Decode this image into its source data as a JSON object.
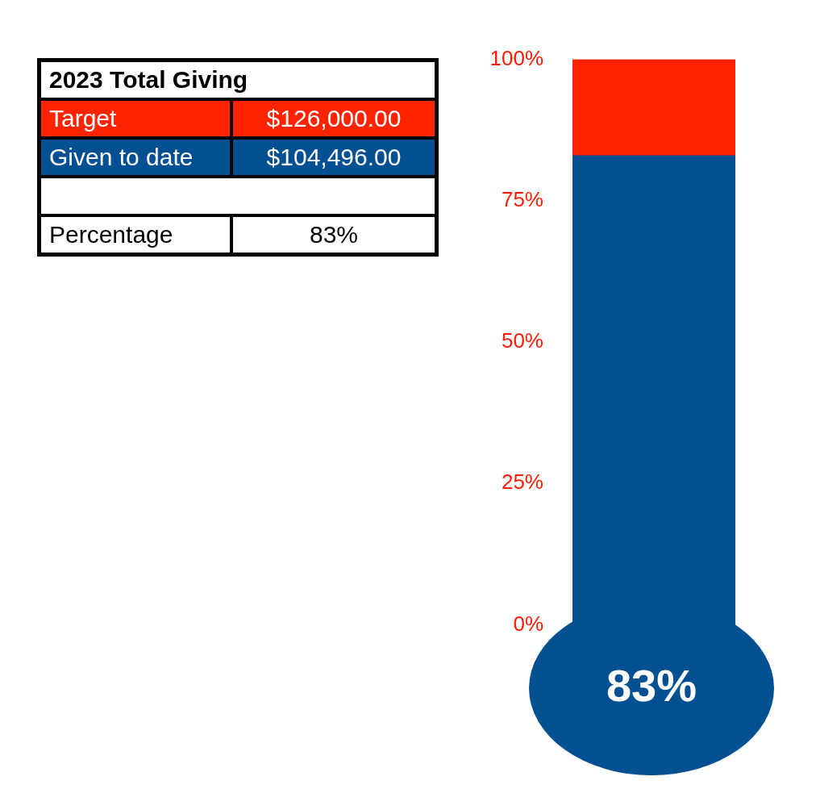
{
  "chart_data": [
    {
      "type": "other",
      "title": "2023 Total Giving",
      "colors": [
        "#ff2300",
        "#024f91"
      ],
      "annotations": [
        "Target",
        "$126,000.00",
        "Given to date",
        "$104,496.00",
        "Percentage",
        "83%"
      ]
    },
    {
      "type": "bar",
      "stacked": true,
      "categories": [
        null
      ],
      "series": [
        {
          "color": "#024f91",
          "values": [
            83
          ]
        },
        {
          "color": "#ff2300",
          "values": [
            17
          ]
        }
      ],
      "ylim": [
        0,
        100
      ],
      "yticks": [
        {
          "value": 0,
          "label": "0%"
        },
        {
          "value": 25,
          "label": "25%"
        },
        {
          "value": 50,
          "label": "50%"
        },
        {
          "value": 75,
          "label": "75%"
        },
        {
          "value": 100,
          "label": "100%"
        }
      ],
      "tick_labels": "y",
      "grid": false,
      "legend": false,
      "annotations": [
        "83%"
      ]
    }
  ]
}
